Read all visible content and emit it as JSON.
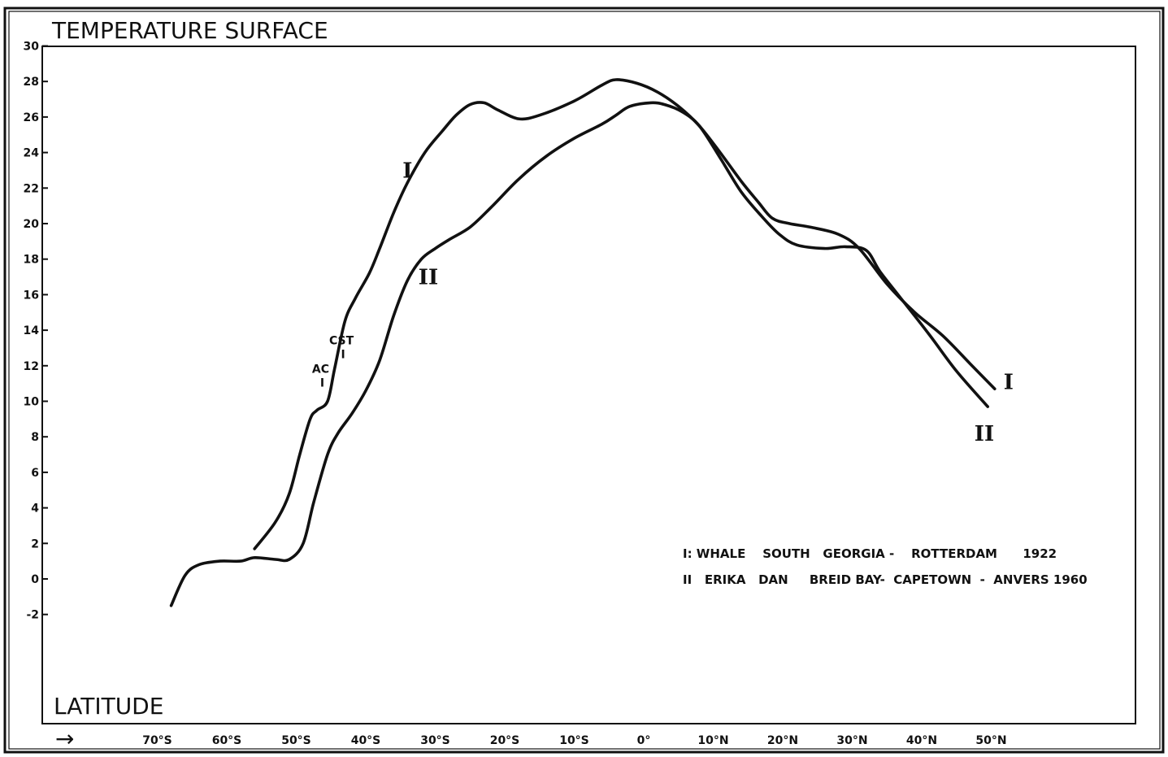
{
  "chart_data": {
    "type": "line",
    "title": "TEMPERATURE SURFACE",
    "xlabel": "LATITUDE",
    "xlabel_arrow": "→",
    "ylabel": "",
    "xlim": [
      -80,
      57
    ],
    "ylim": [
      -9.5,
      30
    ],
    "x_ticks": [
      {
        "value": -70,
        "label": "70°S"
      },
      {
        "value": -60,
        "label": "60°S"
      },
      {
        "value": -50,
        "label": "50°S"
      },
      {
        "value": -40,
        "label": "40°S"
      },
      {
        "value": -30,
        "label": "30°S"
      },
      {
        "value": -20,
        "label": "20°S"
      },
      {
        "value": -10,
        "label": "10°S"
      },
      {
        "value": 0,
        "label": "0°"
      },
      {
        "value": 10,
        "label": "10°N"
      },
      {
        "value": 20,
        "label": "20°N"
      },
      {
        "value": 30,
        "label": "30°N"
      },
      {
        "value": 40,
        "label": "40°N"
      },
      {
        "value": 50,
        "label": "50°N"
      }
    ],
    "y_ticks": [
      {
        "value": 30,
        "label": "30"
      },
      {
        "value": 28,
        "label": "28"
      },
      {
        "value": 26,
        "label": "26"
      },
      {
        "value": 24,
        "label": "24"
      },
      {
        "value": 22,
        "label": "22"
      },
      {
        "value": 20,
        "label": "20"
      },
      {
        "value": 18,
        "label": "18"
      },
      {
        "value": 16,
        "label": "16"
      },
      {
        "value": 14,
        "label": "14"
      },
      {
        "value": 12,
        "label": "12"
      },
      {
        "value": 10,
        "label": "10"
      },
      {
        "value": 8,
        "label": "8"
      },
      {
        "value": 6,
        "label": "6"
      },
      {
        "value": 4,
        "label": "4"
      },
      {
        "value": 2,
        "label": "2"
      },
      {
        "value": 0,
        "label": "0"
      },
      {
        "value": -2,
        "label": "-2"
      }
    ],
    "grid": false,
    "series": [
      {
        "name": "I",
        "legend": "I: WHALE    SOUTH   GEORGIA -    ROTTERDAM      1922",
        "color": "#111111",
        "points": [
          [
            -56,
            1.7
          ],
          [
            -53,
            3.2
          ],
          [
            -51,
            4.8
          ],
          [
            -49.5,
            7.0
          ],
          [
            -48,
            9.0
          ],
          [
            -47,
            9.5
          ],
          [
            -45.5,
            10.0
          ],
          [
            -44.5,
            11.8
          ],
          [
            -43,
            14.5
          ],
          [
            -41.5,
            15.8
          ],
          [
            -39.5,
            17.2
          ],
          [
            -38,
            18.6
          ],
          [
            -36,
            20.6
          ],
          [
            -34,
            22.3
          ],
          [
            -31.5,
            24.0
          ],
          [
            -29,
            25.2
          ],
          [
            -27,
            26.1
          ],
          [
            -25,
            26.7
          ],
          [
            -23,
            26.8
          ],
          [
            -21,
            26.4
          ],
          [
            -18,
            25.9
          ],
          [
            -15,
            26.1
          ],
          [
            -10,
            26.9
          ],
          [
            -6,
            27.8
          ],
          [
            -4,
            28.1
          ],
          [
            -1,
            27.9
          ],
          [
            2,
            27.4
          ],
          [
            5,
            26.6
          ],
          [
            8,
            25.5
          ],
          [
            11,
            24.0
          ],
          [
            14,
            22.4
          ],
          [
            16.5,
            21.2
          ],
          [
            18.5,
            20.3
          ],
          [
            21,
            20.0
          ],
          [
            24,
            19.8
          ],
          [
            28,
            19.4
          ],
          [
            31,
            18.6
          ],
          [
            35,
            16.6
          ],
          [
            39,
            15.0
          ],
          [
            43,
            13.7
          ],
          [
            47,
            12.1
          ],
          [
            50.5,
            10.7
          ]
        ]
      },
      {
        "name": "II",
        "legend": "II   ERIKA   DAN     BREID BAY-  CAPETOWN  -  ANVERS 1960",
        "color": "#111111",
        "points": [
          [
            -68,
            -1.5
          ],
          [
            -66,
            0.2
          ],
          [
            -64,
            0.8
          ],
          [
            -61,
            1.0
          ],
          [
            -58,
            1.0
          ],
          [
            -56,
            1.2
          ],
          [
            -53,
            1.1
          ],
          [
            -51,
            1.1
          ],
          [
            -49,
            2.0
          ],
          [
            -47.5,
            4.3
          ],
          [
            -45.5,
            7.0
          ],
          [
            -44,
            8.2
          ],
          [
            -42,
            9.3
          ],
          [
            -40,
            10.6
          ],
          [
            -38,
            12.3
          ],
          [
            -36,
            14.8
          ],
          [
            -34,
            16.8
          ],
          [
            -32,
            18.0
          ],
          [
            -30,
            18.6
          ],
          [
            -28,
            19.1
          ],
          [
            -25,
            19.8
          ],
          [
            -22,
            20.9
          ],
          [
            -18,
            22.5
          ],
          [
            -14,
            23.8
          ],
          [
            -10,
            24.8
          ],
          [
            -6,
            25.6
          ],
          [
            -4,
            26.1
          ],
          [
            -2,
            26.6
          ],
          [
            1,
            26.8
          ],
          [
            3,
            26.7
          ],
          [
            5.5,
            26.3
          ],
          [
            8,
            25.5
          ],
          [
            11,
            23.7
          ],
          [
            14,
            21.8
          ],
          [
            17,
            20.4
          ],
          [
            19.5,
            19.4
          ],
          [
            22,
            18.8
          ],
          [
            26,
            18.6
          ],
          [
            29,
            18.7
          ],
          [
            32,
            18.5
          ],
          [
            34,
            17.3
          ],
          [
            37,
            15.8
          ],
          [
            41,
            13.8
          ],
          [
            45,
            11.7
          ],
          [
            49.5,
            9.7
          ]
        ]
      }
    ],
    "series_labels": [
      {
        "text": "I",
        "x": -34,
        "y": 23.0
      },
      {
        "text": "II",
        "x": -31,
        "y": 17.0
      },
      {
        "text": "I",
        "x": 52.5,
        "y": 11.1
      },
      {
        "text": "II",
        "x": 49,
        "y": 8.2
      }
    ],
    "annotations": [
      {
        "text": "CST",
        "tick": "I",
        "x": -43.5,
        "y": 13.2
      },
      {
        "text": "AC",
        "tick": "I",
        "x": -46.5,
        "y": 11.6
      }
    ],
    "legend_position": "bottom-right"
  }
}
